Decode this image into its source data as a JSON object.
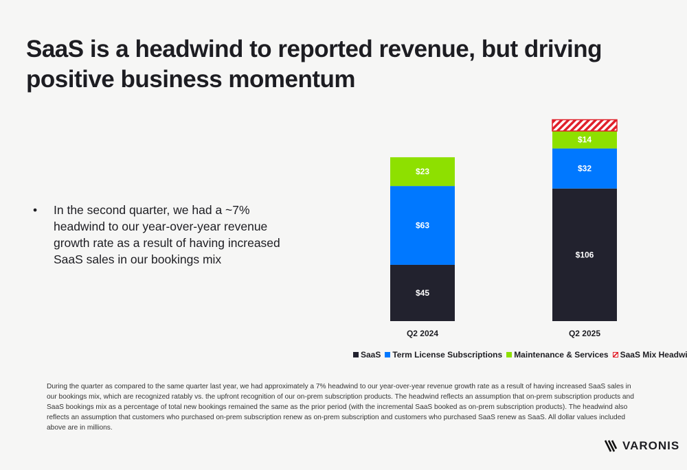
{
  "title": "SaaS is a headwind to reported revenue, but driving positive business momentum",
  "bullet": "In the second quarter, we had a ~7% headwind to our year-over-year revenue growth rate as a result of having increased SaaS sales in our bookings mix",
  "bullet_marker": "•",
  "footnote": "During the quarter as compared to the same quarter last year, we had approximately a 7% headwind to our year-over-year revenue growth rate as a result of having increased SaaS sales in our bookings mix, which are recognized ratably vs. the upfront recognition of our on-prem subscription products. The headwind reflects an assumption that on-prem subscription products and SaaS bookings mix as a percentage of total new bookings remained the same as the prior period (with the incremental SaaS booked as on-prem subscription products). The headwind also reflects an assumption that customers who purchased on-prem subscription renew as on-prem subscription and customers who purchased SaaS renew as SaaS. All dollar values included above are in millions.",
  "logo": "VARONIS",
  "chart_data": {
    "type": "bar",
    "stacked": true,
    "categories": [
      "Q2 2024",
      "Q2 2025"
    ],
    "series": [
      {
        "name": "SaaS",
        "color": "#22222e",
        "values": [
          45,
          106
        ],
        "labels": [
          "$45",
          "$106"
        ]
      },
      {
        "name": "Term License Subscriptions",
        "color": "#0078ff",
        "values": [
          63,
          32
        ],
        "labels": [
          "$63",
          "$32"
        ]
      },
      {
        "name": "Maintenance & Services",
        "color": "#8ee000",
        "values": [
          23,
          14
        ],
        "labels": [
          "$23",
          "$14"
        ]
      },
      {
        "name": "SaaS Mix Headwind",
        "color": "#e0202a",
        "hatched": true,
        "values": [
          0,
          9
        ],
        "labels": [
          "",
          ""
        ]
      }
    ],
    "ylim": [
      0,
      165
    ],
    "legend_position": "bottom",
    "grid": false
  }
}
